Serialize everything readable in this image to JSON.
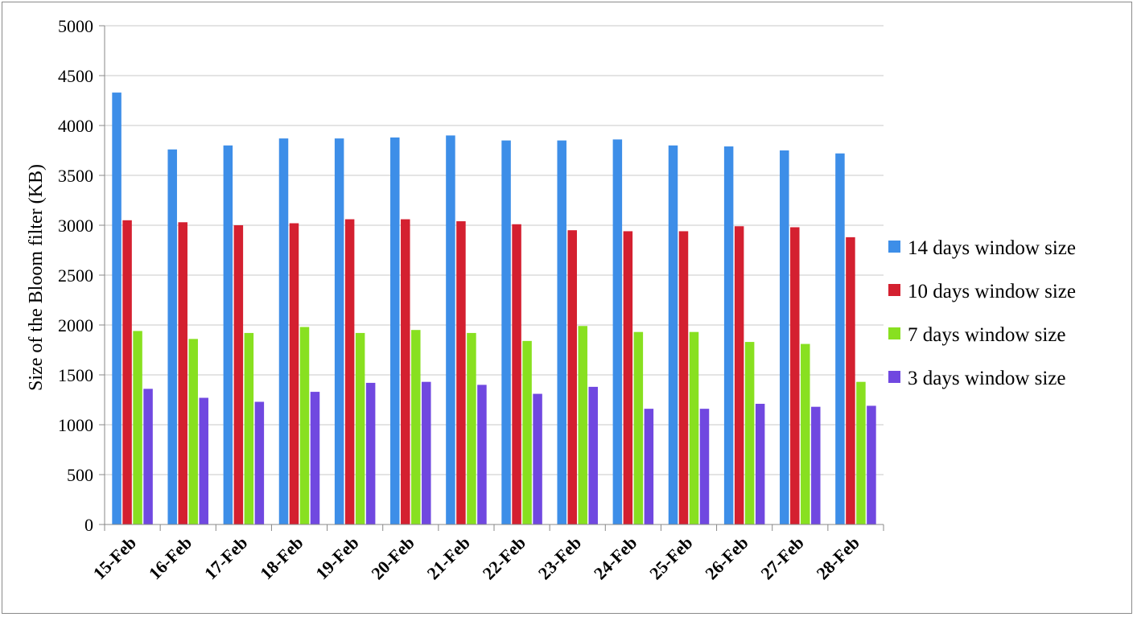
{
  "chart_data": {
    "type": "bar",
    "title": "",
    "xlabel": "",
    "ylabel": "Size of  the Bloom filter (KB)",
    "ylim": [
      0,
      5000
    ],
    "yticks": [
      0,
      500,
      1000,
      1500,
      2000,
      2500,
      3000,
      3500,
      4000,
      4500,
      5000
    ],
    "grid": true,
    "legend_position": "right",
    "categories": [
      "15-Feb",
      "16-Feb",
      "17-Feb",
      "18-Feb",
      "19-Feb",
      "20-Feb",
      "21-Feb",
      "22-Feb",
      "23-Feb",
      "24-Feb",
      "25-Feb",
      "26-Feb",
      "27-Feb",
      "28-Feb"
    ],
    "series": [
      {
        "name": "14 days window size",
        "color": "#3d8ee8",
        "values": [
          4330,
          3760,
          3800,
          3870,
          3870,
          3880,
          3900,
          3850,
          3850,
          3860,
          3800,
          3790,
          3750,
          3720
        ]
      },
      {
        "name": "10 days window size",
        "color": "#d42030",
        "values": [
          3050,
          3030,
          3000,
          3020,
          3060,
          3060,
          3040,
          3010,
          2950,
          2940,
          2940,
          2990,
          2980,
          2880
        ]
      },
      {
        "name": "7 days window size",
        "color": "#88e020",
        "values": [
          1940,
          1860,
          1920,
          1980,
          1920,
          1950,
          1920,
          1840,
          1990,
          1930,
          1930,
          1830,
          1810,
          1430
        ]
      },
      {
        "name": "3 days window size",
        "color": "#7048e0",
        "values": [
          1360,
          1270,
          1230,
          1330,
          1420,
          1430,
          1400,
          1310,
          1380,
          1160,
          1160,
          1210,
          1180,
          1190
        ]
      }
    ]
  }
}
